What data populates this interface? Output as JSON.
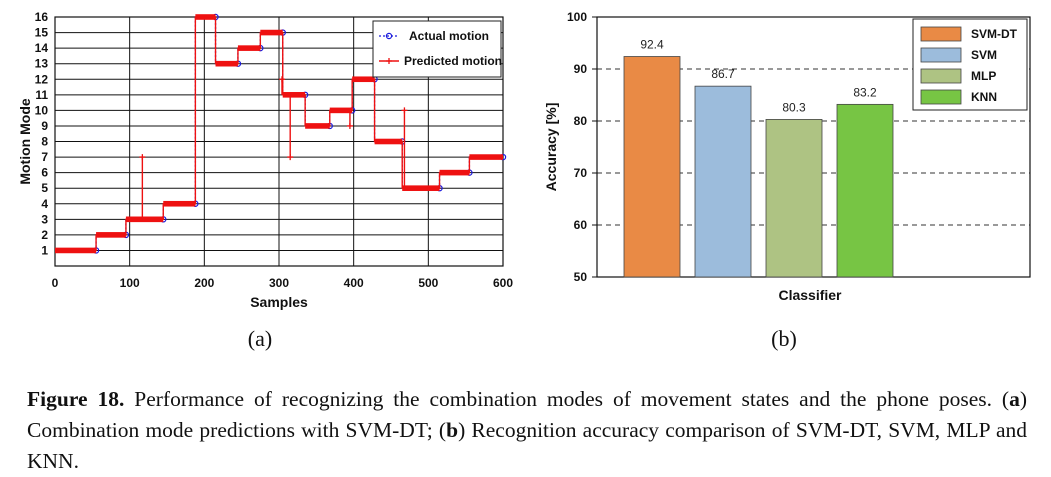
{
  "chart_data": [
    {
      "type": "line",
      "panel_label": "(a)",
      "xlabel": "Samples",
      "ylabel": "Motion Mode",
      "xlim": [
        0,
        600
      ],
      "ylim": [
        0,
        16
      ],
      "x_ticks": [
        "0",
        "100",
        "200",
        "300",
        "400",
        "500",
        "600"
      ],
      "y_ticks": [
        "1",
        "2",
        "3",
        "4",
        "5",
        "6",
        "7",
        "8",
        "9",
        "10",
        "11",
        "12",
        "13",
        "14",
        "15",
        "16"
      ],
      "grid": true,
      "legend_position": "top-right",
      "series": [
        {
          "name": "Actual motion",
          "color": "#1a1adc",
          "style": "dotted-circle",
          "segments": [
            {
              "x0": 0,
              "x1": 55,
              "y": 1
            },
            {
              "x0": 55,
              "x1": 95,
              "y": 2
            },
            {
              "x0": 95,
              "x1": 145,
              "y": 3
            },
            {
              "x0": 145,
              "x1": 188,
              "y": 4
            },
            {
              "x0": 188,
              "x1": 215,
              "y": 16
            },
            {
              "x0": 215,
              "x1": 245,
              "y": 13
            },
            {
              "x0": 245,
              "x1": 275,
              "y": 14
            },
            {
              "x0": 275,
              "x1": 305,
              "y": 15
            },
            {
              "x0": 305,
              "x1": 335,
              "y": 11
            },
            {
              "x0": 335,
              "x1": 368,
              "y": 9
            },
            {
              "x0": 368,
              "x1": 398,
              "y": 10
            },
            {
              "x0": 398,
              "x1": 428,
              "y": 12
            },
            {
              "x0": 428,
              "x1": 465,
              "y": 8
            },
            {
              "x0": 465,
              "x1": 515,
              "y": 5
            },
            {
              "x0": 515,
              "x1": 555,
              "y": 6
            },
            {
              "x0": 555,
              "x1": 608,
              "y": 7
            }
          ]
        },
        {
          "name": "Predicted motion",
          "color": "#ee1111",
          "style": "solid-plus",
          "segments": [
            {
              "x0": 0,
              "x1": 55,
              "y": 1
            },
            {
              "x0": 55,
              "x1": 95,
              "y": 2
            },
            {
              "x0": 95,
              "x1": 145,
              "y": 3
            },
            {
              "x0": 145,
              "x1": 188,
              "y": 4
            },
            {
              "x0": 188,
              "x1": 215,
              "y": 16
            },
            {
              "x0": 215,
              "x1": 245,
              "y": 13
            },
            {
              "x0": 245,
              "x1": 275,
              "y": 14
            },
            {
              "x0": 275,
              "x1": 305,
              "y": 15
            },
            {
              "x0": 305,
              "x1": 335,
              "y": 11
            },
            {
              "x0": 335,
              "x1": 368,
              "y": 9
            },
            {
              "x0": 368,
              "x1": 398,
              "y": 10
            },
            {
              "x0": 398,
              "x1": 428,
              "y": 12
            },
            {
              "x0": 428,
              "x1": 465,
              "y": 8
            },
            {
              "x0": 465,
              "x1": 515,
              "y": 5
            },
            {
              "x0": 515,
              "x1": 555,
              "y": 6
            },
            {
              "x0": 555,
              "x1": 608,
              "y": 7
            }
          ],
          "spikes": [
            {
              "x": 117,
              "from": 3,
              "to": 7
            },
            {
              "x": 304,
              "from": 11,
              "to": 12
            },
            {
              "x": 315,
              "from": 11,
              "to": 7
            },
            {
              "x": 395,
              "from": 10,
              "to": 9
            },
            {
              "x": 468,
              "from": 5,
              "to": 10
            }
          ]
        }
      ]
    },
    {
      "type": "bar",
      "panel_label": "(b)",
      "xlabel": "Classifier",
      "ylabel": "Accuracy [%]",
      "ylim": [
        50,
        100
      ],
      "y_ticks": [
        "50",
        "60",
        "70",
        "80",
        "90",
        "100"
      ],
      "grid": true,
      "legend_position": "top-right",
      "categories": [
        "SVM-DT",
        "SVM",
        "MLP",
        "KNN"
      ],
      "values": [
        92.4,
        86.7,
        80.3,
        83.2
      ],
      "value_labels": [
        "92.4",
        "86.7",
        "80.3",
        "83.2"
      ],
      "colors": [
        "#e98a45",
        "#9cbcdc",
        "#aec383",
        "#77c544"
      ],
      "legend": [
        "SVM-DT",
        "SVM",
        "MLP",
        "KNN"
      ]
    }
  ],
  "caption": {
    "label": "Figure 18.",
    "text": " Performance of recognizing the combination modes of movement states and the phone poses. (",
    "a": "a",
    "text_a": ") Combination mode predictions with SVM-DT; (",
    "b": "b",
    "text_b": ") Recognition accuracy comparison of SVM-DT, SVM, MLP and KNN."
  }
}
